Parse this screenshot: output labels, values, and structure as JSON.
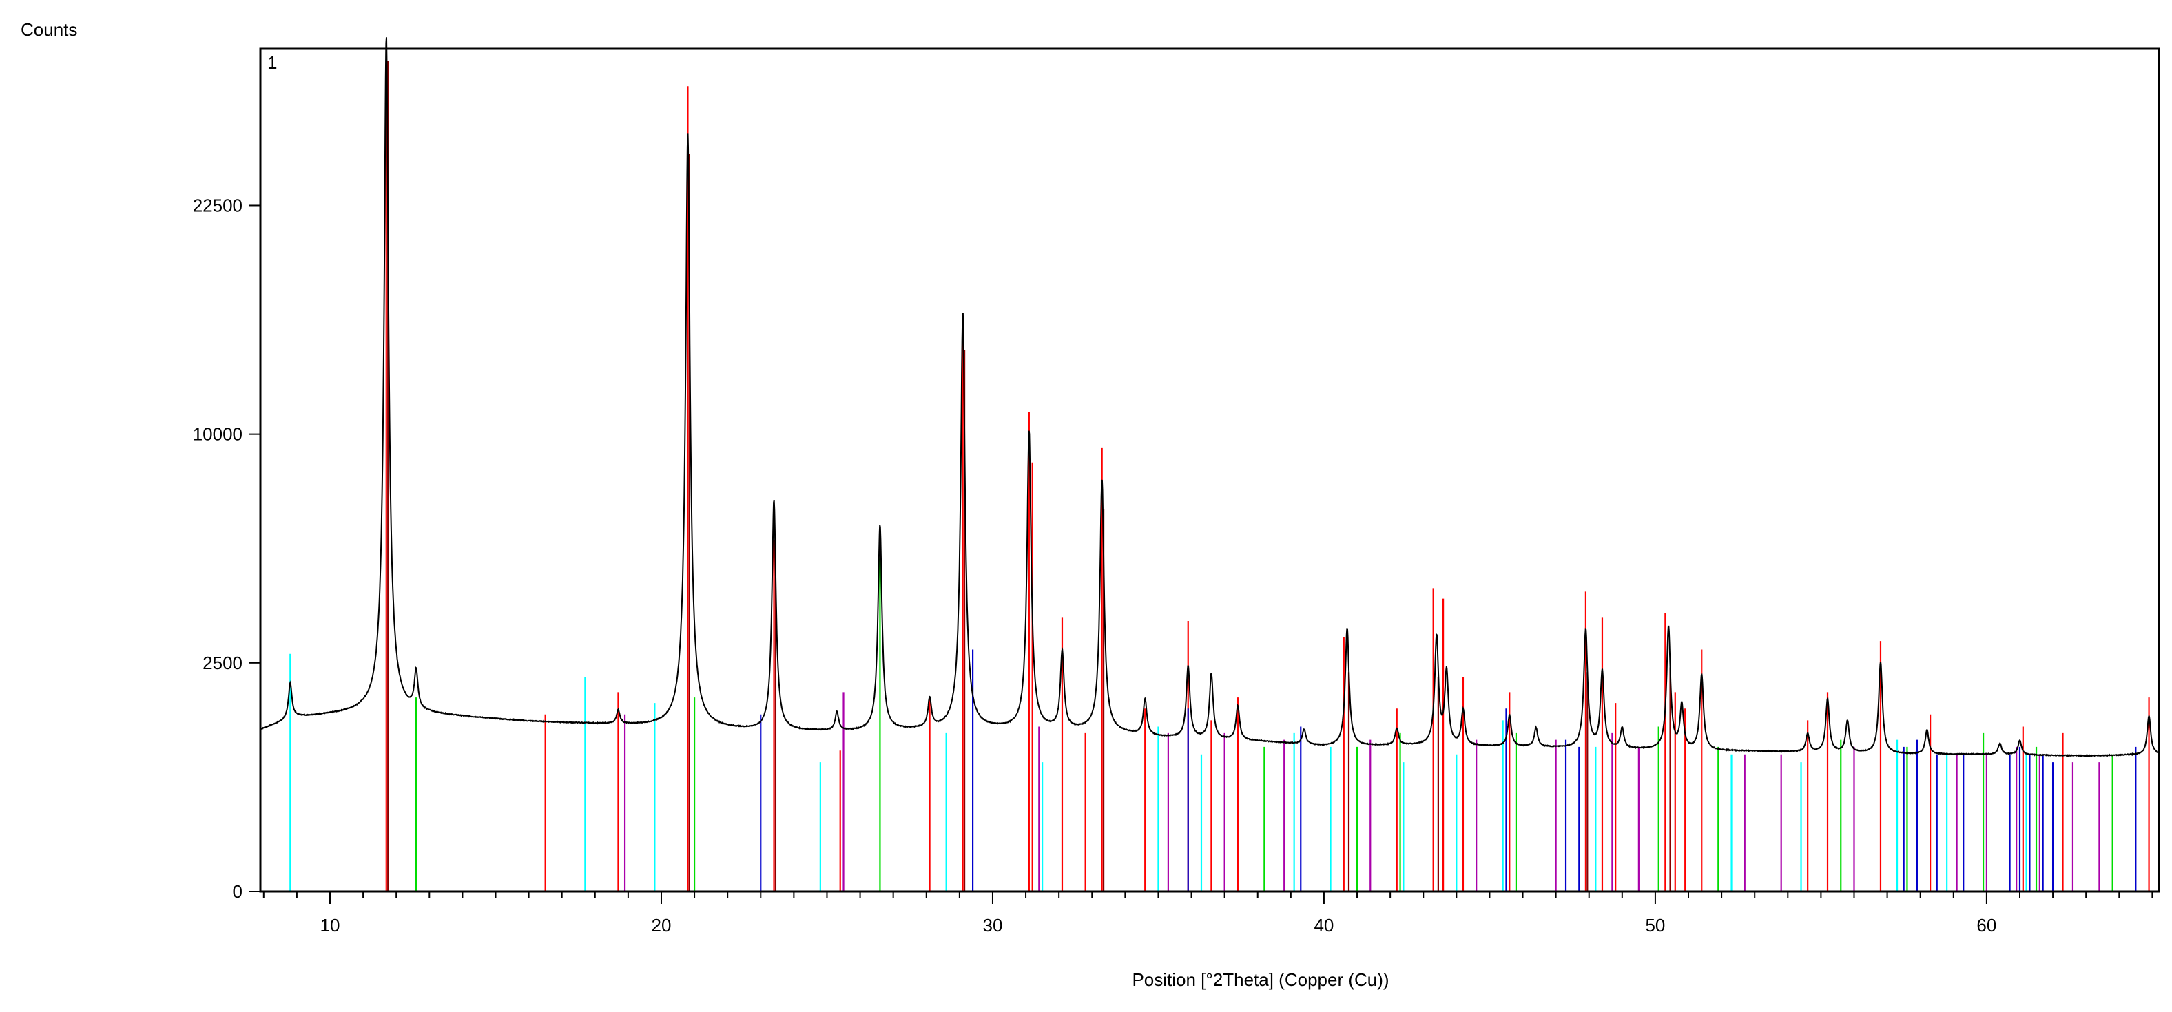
{
  "chart_data": {
    "type": "line",
    "title": "",
    "panel_label": "1",
    "xlabel": "Position [°2Theta] (Copper (Cu))",
    "ylabel": "Counts",
    "xlim": [
      7.9,
      65.2
    ],
    "x_ticks": [
      10,
      20,
      30,
      40,
      50,
      60
    ],
    "y_scale": "sqrt",
    "y_ticks": [
      0,
      2500,
      10000,
      22500
    ],
    "ylim": [
      0,
      34000
    ],
    "grid": false,
    "legend": "none",
    "pattern": {
      "color": "#000000",
      "baseline_points": [
        [
          7.9,
          1250
        ],
        [
          9.0,
          1450
        ],
        [
          11.0,
          1530
        ],
        [
          13.0,
          1490
        ],
        [
          16.0,
          1380
        ],
        [
          19.0,
          1320
        ],
        [
          21.0,
          1280
        ],
        [
          23.0,
          1230
        ],
        [
          26.0,
          1220
        ],
        [
          28.0,
          1250
        ],
        [
          30.0,
          1260
        ],
        [
          33.0,
          1240
        ],
        [
          35.0,
          1140
        ],
        [
          38.0,
          1080
        ],
        [
          40.0,
          1010
        ],
        [
          43.0,
          1020
        ],
        [
          46.0,
          1000
        ],
        [
          48.0,
          980
        ],
        [
          50.0,
          960
        ],
        [
          53.0,
          940
        ],
        [
          56.0,
          920
        ],
        [
          58.0,
          900
        ],
        [
          60.0,
          900
        ],
        [
          63.0,
          880
        ],
        [
          65.2,
          900
        ]
      ],
      "peaks": [
        [
          8.8,
          650
        ],
        [
          11.7,
          33500
        ],
        [
          12.6,
          750
        ],
        [
          18.7,
          230
        ],
        [
          20.8,
          26200
        ],
        [
          23.4,
          6100
        ],
        [
          25.3,
          300
        ],
        [
          26.6,
          5200
        ],
        [
          28.1,
          500
        ],
        [
          29.1,
          14800
        ],
        [
          31.1,
          8900
        ],
        [
          32.1,
          1500
        ],
        [
          33.3,
          6900
        ],
        [
          34.6,
          600
        ],
        [
          35.9,
          1300
        ],
        [
          36.6,
          1150
        ],
        [
          37.4,
          550
        ],
        [
          39.4,
          220
        ],
        [
          40.7,
          2300
        ],
        [
          42.2,
          250
        ],
        [
          43.4,
          2100
        ],
        [
          43.7,
          1300
        ],
        [
          44.2,
          560
        ],
        [
          45.6,
          480
        ],
        [
          46.4,
          280
        ],
        [
          47.9,
          2300
        ],
        [
          48.4,
          1350
        ],
        [
          49.0,
          300
        ],
        [
          50.4,
          2400
        ],
        [
          50.8,
          700
        ],
        [
          51.4,
          1300
        ],
        [
          54.6,
          260
        ],
        [
          55.2,
          850
        ],
        [
          55.8,
          470
        ],
        [
          56.8,
          1600
        ],
        [
          58.2,
          350
        ],
        [
          60.4,
          150
        ],
        [
          61.0,
          200
        ],
        [
          64.9,
          580
        ]
      ]
    },
    "reference_series": [
      {
        "color": "#ff0000",
        "x": [
          11.7,
          16.5,
          18.7,
          20.8,
          23.4,
          25.4,
          28.1,
          29.1,
          31.1,
          31.2,
          32.1,
          32.8,
          33.3,
          34.6,
          35.9,
          36.6,
          37.4,
          40.6,
          42.2,
          43.3,
          43.6,
          44.2,
          45.6,
          47.9,
          48.4,
          48.8,
          50.3,
          50.6,
          50.9,
          51.4,
          54.6,
          55.2,
          56.8,
          58.3,
          61.1,
          62.3,
          64.9
        ],
        "y": [
          34000,
          1500,
          1900,
          31000,
          5900,
          950,
          1800,
          14500,
          11000,
          8800,
          3600,
          1200,
          9400,
          1600,
          3500,
          1400,
          1800,
          3100,
          1600,
          4400,
          4100,
          2200,
          1900,
          4300,
          3600,
          1700,
          3700,
          1900,
          1600,
          2800,
          1400,
          1900,
          3000,
          1500,
          1300,
          1200,
          1800
        ]
      },
      {
        "color": "#00ffff",
        "x": [
          8.8,
          17.7,
          19.8,
          24.8,
          28.6,
          31.5,
          35.0,
          36.3,
          39.1,
          40.2,
          42.4,
          44.0,
          45.4,
          48.2,
          52.3,
          54.4,
          57.3,
          58.8,
          61.2
        ],
        "y": [
          2700,
          2200,
          1700,
          800,
          1200,
          800,
          1300,
          900,
          1200,
          1000,
          800,
          900,
          1400,
          1000,
          900,
          800,
          1100,
          900,
          900
        ]
      },
      {
        "color": "#00dd00",
        "x": [
          12.6,
          21.0,
          26.6,
          38.2,
          41.0,
          42.3,
          45.8,
          50.1,
          51.9,
          55.6,
          57.6,
          59.9,
          61.5,
          63.8
        ],
        "y": [
          1800,
          1800,
          5300,
          1000,
          1000,
          1200,
          1200,
          1300,
          1000,
          1100,
          1000,
          1200,
          1000,
          900
        ]
      },
      {
        "color": "#0000cc",
        "x": [
          23.0,
          29.4,
          35.9,
          39.3,
          45.5,
          47.3,
          47.7,
          57.5,
          57.9,
          58.5,
          59.3,
          60.7,
          61.0,
          61.3,
          61.7,
          62.0,
          64.5
        ],
        "y": [
          1500,
          2800,
          1600,
          1300,
          1600,
          1100,
          1000,
          1000,
          1100,
          900,
          900,
          900,
          1000,
          900,
          900,
          800,
          1000
        ]
      },
      {
        "color": "#aa00aa",
        "x": [
          18.9,
          25.5,
          31.4,
          35.3,
          37.0,
          38.8,
          41.4,
          44.6,
          47.0,
          48.7,
          49.5,
          52.7,
          53.8,
          56.0,
          59.1,
          60.0,
          60.9,
          61.6,
          62.6,
          63.4
        ],
        "y": [
          1500,
          1900,
          1300,
          1200,
          1200,
          1100,
          1100,
          1100,
          1100,
          1200,
          1000,
          900,
          900,
          1000,
          900,
          900,
          1000,
          900,
          800,
          800
        ]
      },
      {
        "color": "#880000",
        "x": [
          11.75,
          20.85,
          23.45,
          29.15,
          33.35,
          40.75,
          43.45,
          47.95,
          50.45
        ],
        "y": [
          33000,
          26000,
          6000,
          14000,
          7000,
          2300,
          2200,
          2300,
          2400
        ]
      }
    ]
  }
}
